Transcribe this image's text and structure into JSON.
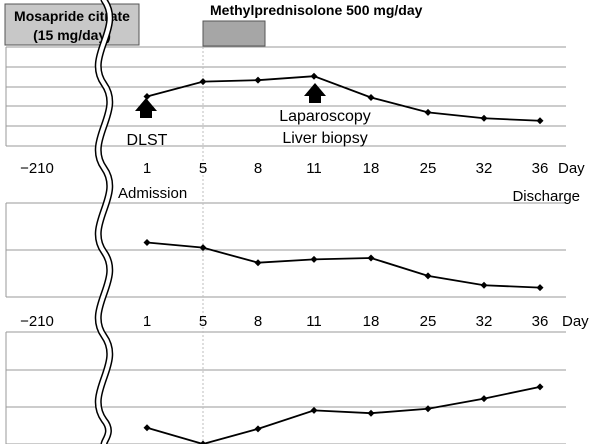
{
  "chart_data": {
    "type": "line",
    "x": [
      "−210",
      "1",
      "5",
      "8",
      "11",
      "18",
      "25",
      "32",
      "36"
    ],
    "x_unit": "Day",
    "treatments": [
      {
        "label_line1": "Mosapride citrate",
        "label_line2": "(15 mg/day)",
        "color": "#c8c8c8"
      },
      {
        "label_line1": "Methylprednisolone 500 mg/day",
        "color": "#a6a6a6"
      }
    ],
    "events": [
      {
        "day": "1",
        "label": "DLST",
        "marker": "up-arrow"
      },
      {
        "day": "11",
        "label": "Laparoscopy",
        "label2": "Liver biopsy",
        "marker": "up-arrow"
      },
      {
        "day": "1",
        "label": "Admission"
      },
      {
        "day": "36",
        "label": "Discharge"
      }
    ],
    "panels": [
      {
        "series": [
          {
            "values": [
              5.0,
              6.5,
              6.65,
              7.05,
              4.9,
              3.4,
              2.8,
              2.55
            ]
          }
        ],
        "ylim": [
          0,
          10
        ]
      },
      {
        "series": [
          {
            "values": [
              5.8,
              5.25,
              3.65,
              4.0,
              4.15,
              2.25,
              1.25,
              1.0
            ]
          }
        ],
        "ylim": [
          0,
          10
        ]
      },
      {
        "series": [
          {
            "values": [
              1.45,
              0.0,
              1.35,
              3.0,
              2.75,
              3.15,
              4.05,
              5.1
            ]
          }
        ],
        "ylim": [
          0,
          10
        ]
      }
    ],
    "grid": true,
    "legend": "none",
    "line_color": "#000000",
    "grid_color": "#9a9a9a"
  }
}
